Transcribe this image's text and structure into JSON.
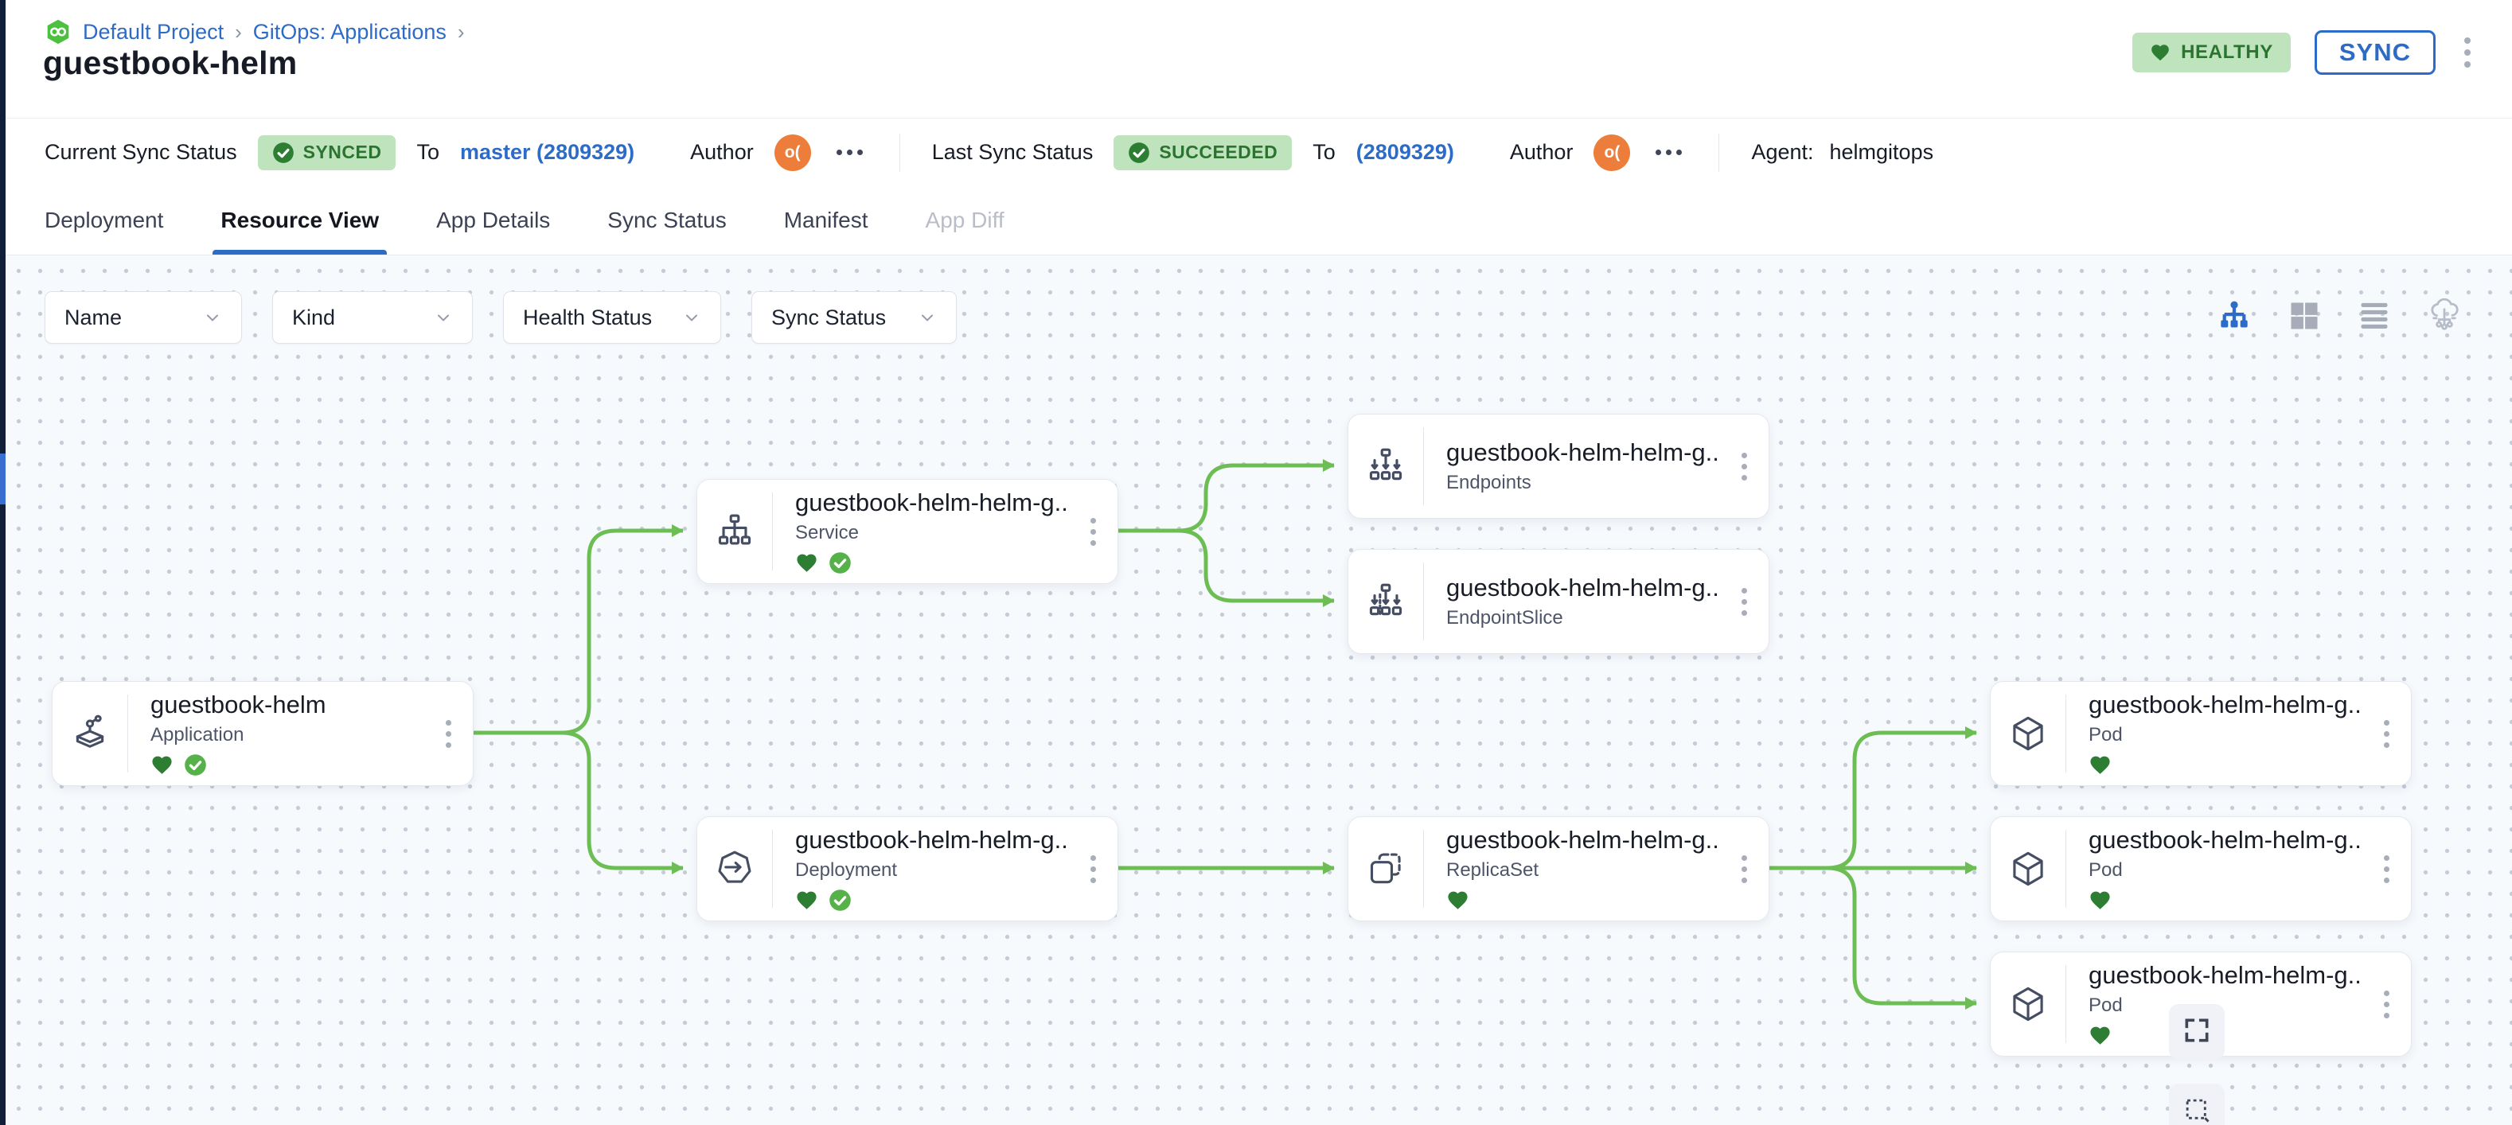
{
  "breadcrumb": {
    "logo": "codefresh-logo",
    "separator": "›",
    "items": [
      {
        "label": "Default Project"
      },
      {
        "label": "GitOps: Applications"
      }
    ]
  },
  "page_title": "guestbook-helm",
  "header_actions": {
    "health_badge": "HEALTHY",
    "sync_button": "SYNC"
  },
  "status_bar": {
    "current_sync": {
      "label": "Current Sync Status",
      "badge": "SYNCED",
      "to": "To",
      "revision": "master (2809329)",
      "author": "Author",
      "avatar": "o("
    },
    "last_sync": {
      "label": "Last Sync Status",
      "badge": "SUCCEEDED",
      "to": "To",
      "revision": "(2809329)",
      "author": "Author",
      "avatar": "o("
    },
    "agent": {
      "label": "Agent:",
      "value": "helmgitops"
    }
  },
  "tabs": [
    {
      "label": "Deployment",
      "state": "normal"
    },
    {
      "label": "Resource View",
      "state": "active"
    },
    {
      "label": "App Details",
      "state": "normal"
    },
    {
      "label": "Sync Status",
      "state": "normal"
    },
    {
      "label": "Manifest",
      "state": "normal"
    },
    {
      "label": "App Diff",
      "state": "disabled"
    }
  ],
  "filters": [
    {
      "label": "Name"
    },
    {
      "label": "Kind"
    },
    {
      "label": "Health Status"
    },
    {
      "label": "Sync Status"
    }
  ],
  "view_toggles": [
    {
      "name": "tree-view",
      "active": true
    },
    {
      "name": "grid-view",
      "active": false
    },
    {
      "name": "list-view",
      "active": false
    },
    {
      "name": "cluster-view",
      "active": false
    }
  ],
  "graph": {
    "nodes": [
      {
        "id": "application",
        "title": "guestbook-helm",
        "kind": "Application",
        "icon": "application-icon",
        "healthy": true,
        "synced": true
      },
      {
        "id": "service",
        "title": "guestbook-helm-helm-g...",
        "kind": "Service",
        "icon": "service-icon",
        "healthy": true,
        "synced": true
      },
      {
        "id": "endpoints",
        "title": "guestbook-helm-helm-g...",
        "kind": "Endpoints",
        "icon": "endpoints-icon",
        "healthy": false,
        "synced": false
      },
      {
        "id": "endpointslice",
        "title": "guestbook-helm-helm-g...",
        "kind": "EndpointSlice",
        "icon": "endpointslice-icon",
        "healthy": false,
        "synced": false
      },
      {
        "id": "deployment",
        "title": "guestbook-helm-helm-g...",
        "kind": "Deployment",
        "icon": "deployment-icon",
        "healthy": true,
        "synced": true
      },
      {
        "id": "replicaset",
        "title": "guestbook-helm-helm-g...",
        "kind": "ReplicaSet",
        "icon": "replicaset-icon",
        "healthy": true,
        "synced": false
      },
      {
        "id": "pod-1",
        "title": "guestbook-helm-helm-g...",
        "kind": "Pod",
        "icon": "pod-icon",
        "healthy": true,
        "synced": false
      },
      {
        "id": "pod-2",
        "title": "guestbook-helm-helm-g...",
        "kind": "Pod",
        "icon": "pod-icon",
        "healthy": true,
        "synced": false
      },
      {
        "id": "pod-3",
        "title": "guestbook-helm-helm-g...",
        "kind": "Pod",
        "icon": "pod-icon",
        "healthy": true,
        "synced": false
      }
    ],
    "edges": [
      [
        "application",
        "service"
      ],
      [
        "application",
        "deployment"
      ],
      [
        "service",
        "endpoints"
      ],
      [
        "service",
        "endpointslice"
      ],
      [
        "deployment",
        "replicaset"
      ],
      [
        "replicaset",
        "pod-1"
      ],
      [
        "replicaset",
        "pod-2"
      ],
      [
        "replicaset",
        "pod-3"
      ]
    ]
  },
  "colors": {
    "accent_blue": "#2d6bc8",
    "badge_green_bg": "#bfe3bd",
    "badge_green_text": "#2b7430",
    "edge_green": "#6cbe54",
    "avatar_orange": "#ed7d3a",
    "healthy_heart": "#2d7d33",
    "synced_check": "#56b14b",
    "icon_slate": "#454d63",
    "inactive_icon": "#a6acb8"
  }
}
